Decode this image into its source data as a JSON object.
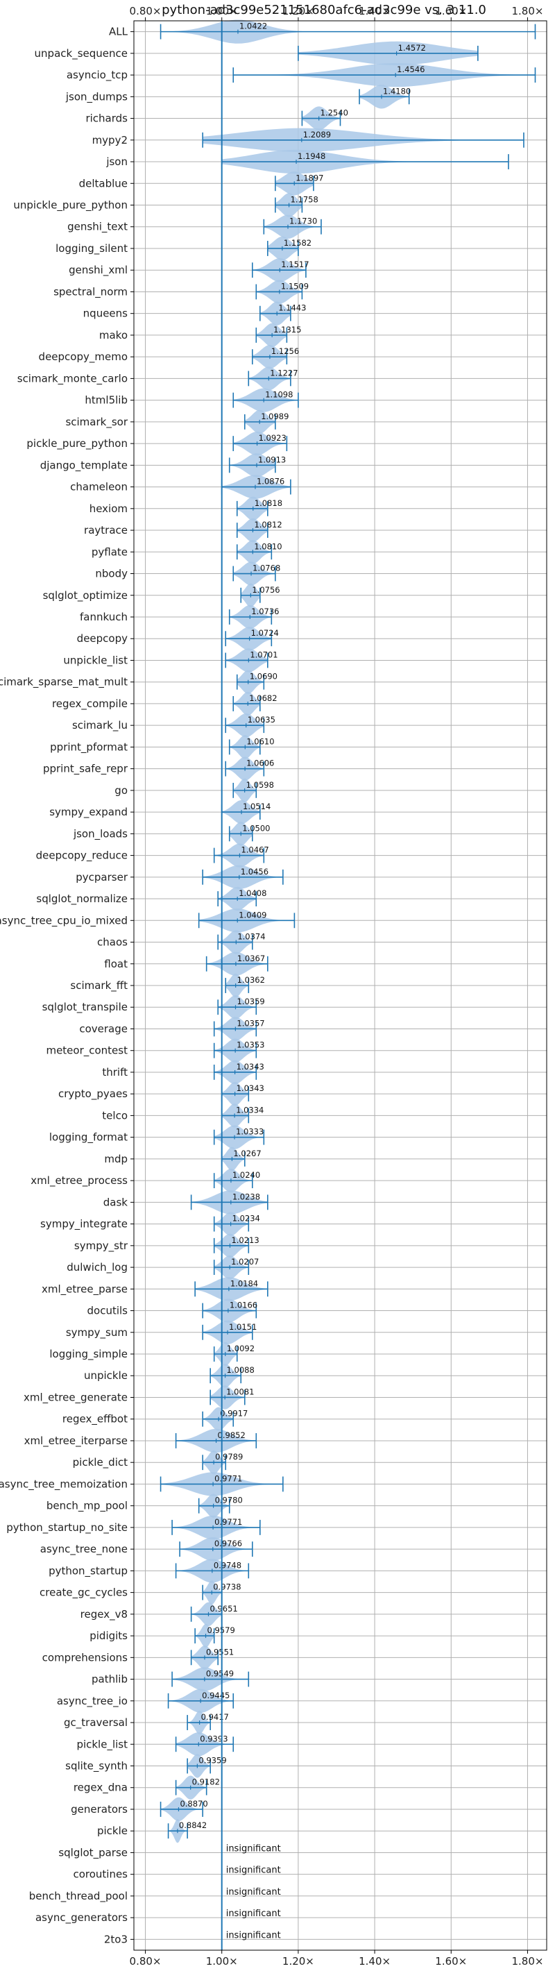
{
  "chart_data": {
    "type": "violin",
    "title": "python-ad3c99e521151680afc6-ad3c99e vs. 3.11.0",
    "xlim": [
      0.77,
      1.85
    ],
    "xticks": [
      "0.80×",
      "1.00×",
      "1.20×",
      "1.40×",
      "1.60×",
      "1.80×"
    ],
    "xtick_values": [
      0.8,
      1.0,
      1.2,
      1.4,
      1.6,
      1.8
    ],
    "reference_line": 1.0,
    "grid": true,
    "colors": {
      "violin": "#a9c8e8",
      "whisker": "#1f77b4",
      "refline": "#1f77b4",
      "grid": "#b0b0b0"
    },
    "insignificant_label": "insignificant",
    "benchmarks": [
      {
        "name": "ALL",
        "value": 1.0422,
        "label": "1.0422",
        "min": 0.84,
        "max": 1.82,
        "spread": 0.12
      },
      {
        "name": "unpack_sequence",
        "value": 1.4572,
        "label": "1.4572",
        "min": 1.2,
        "max": 1.67,
        "spread": 0.22
      },
      {
        "name": "asyncio_tcp",
        "value": 1.4546,
        "label": "1.4546",
        "min": 1.03,
        "max": 1.82,
        "spread": 0.22
      },
      {
        "name": "json_dumps",
        "value": 1.418,
        "label": "1.4180",
        "min": 1.36,
        "max": 1.49,
        "spread": 0.05
      },
      {
        "name": "richards",
        "value": 1.254,
        "label": "1.2540",
        "min": 1.21,
        "max": 1.31,
        "spread": 0.04
      },
      {
        "name": "mypy2",
        "value": 1.2089,
        "label": "1.2089",
        "min": 0.95,
        "max": 1.79,
        "spread": 0.3
      },
      {
        "name": "json",
        "value": 1.1948,
        "label": "1.1948",
        "min": 1.0,
        "max": 1.75,
        "spread": 0.2
      },
      {
        "name": "deltablue",
        "value": 1.1897,
        "label": "1.1897",
        "min": 1.14,
        "max": 1.24,
        "spread": 0.05
      },
      {
        "name": "unpickle_pure_python",
        "value": 1.1758,
        "label": "1.1758",
        "min": 1.14,
        "max": 1.21,
        "spread": 0.035
      },
      {
        "name": "genshi_text",
        "value": 1.173,
        "label": "1.1730",
        "min": 1.11,
        "max": 1.26,
        "spread": 0.05
      },
      {
        "name": "logging_silent",
        "value": 1.1582,
        "label": "1.1582",
        "min": 1.12,
        "max": 1.2,
        "spread": 0.04
      },
      {
        "name": "genshi_xml",
        "value": 1.1517,
        "label": "1.1517",
        "min": 1.08,
        "max": 1.22,
        "spread": 0.05
      },
      {
        "name": "spectral_norm",
        "value": 1.1509,
        "label": "1.1509",
        "min": 1.09,
        "max": 1.21,
        "spread": 0.045
      },
      {
        "name": "nqueens",
        "value": 1.1443,
        "label": "1.1443",
        "min": 1.1,
        "max": 1.18,
        "spread": 0.035
      },
      {
        "name": "mako",
        "value": 1.1315,
        "label": "1.1315",
        "min": 1.09,
        "max": 1.17,
        "spread": 0.035
      },
      {
        "name": "deepcopy_memo",
        "value": 1.1256,
        "label": "1.1256",
        "min": 1.08,
        "max": 1.17,
        "spread": 0.04
      },
      {
        "name": "scimark_monte_carlo",
        "value": 1.1227,
        "label": "1.1227",
        "min": 1.07,
        "max": 1.18,
        "spread": 0.04
      },
      {
        "name": "html5lib",
        "value": 1.1098,
        "label": "1.1098",
        "min": 1.03,
        "max": 1.2,
        "spread": 0.06
      },
      {
        "name": "scimark_sor",
        "value": 1.0989,
        "label": "1.0989",
        "min": 1.06,
        "max": 1.14,
        "spread": 0.035
      },
      {
        "name": "pickle_pure_python",
        "value": 1.0923,
        "label": "1.0923",
        "min": 1.03,
        "max": 1.17,
        "spread": 0.05
      },
      {
        "name": "django_template",
        "value": 1.0913,
        "label": "1.0913",
        "min": 1.02,
        "max": 1.14,
        "spread": 0.05
      },
      {
        "name": "chameleon",
        "value": 1.0876,
        "label": "1.0876",
        "min": 1.0,
        "max": 1.18,
        "spread": 0.07
      },
      {
        "name": "hexiom",
        "value": 1.0818,
        "label": "1.0818",
        "min": 1.04,
        "max": 1.12,
        "spread": 0.035
      },
      {
        "name": "raytrace",
        "value": 1.0812,
        "label": "1.0812",
        "min": 1.04,
        "max": 1.12,
        "spread": 0.035
      },
      {
        "name": "pyflate",
        "value": 1.081,
        "label": "1.0810",
        "min": 1.04,
        "max": 1.13,
        "spread": 0.035
      },
      {
        "name": "nbody",
        "value": 1.0768,
        "label": "1.0768",
        "min": 1.03,
        "max": 1.14,
        "spread": 0.04
      },
      {
        "name": "sqlglot_optimize",
        "value": 1.0756,
        "label": "1.0756",
        "min": 1.05,
        "max": 1.1,
        "spread": 0.025
      },
      {
        "name": "fannkuch",
        "value": 1.0736,
        "label": "1.0736",
        "min": 1.02,
        "max": 1.13,
        "spread": 0.04
      },
      {
        "name": "deepcopy",
        "value": 1.0724,
        "label": "1.0724",
        "min": 1.01,
        "max": 1.13,
        "spread": 0.045
      },
      {
        "name": "unpickle_list",
        "value": 1.0701,
        "label": "1.0701",
        "min": 1.01,
        "max": 1.12,
        "spread": 0.045
      },
      {
        "name": "scimark_sparse_mat_mult",
        "value": 1.069,
        "label": "1.0690",
        "min": 1.04,
        "max": 1.11,
        "spread": 0.03
      },
      {
        "name": "regex_compile",
        "value": 1.0682,
        "label": "1.0682",
        "min": 1.03,
        "max": 1.1,
        "spread": 0.03
      },
      {
        "name": "scimark_lu",
        "value": 1.0635,
        "label": "1.0635",
        "min": 1.01,
        "max": 1.11,
        "spread": 0.04
      },
      {
        "name": "pprint_pformat",
        "value": 1.061,
        "label": "1.0610",
        "min": 1.02,
        "max": 1.1,
        "spread": 0.03
      },
      {
        "name": "pprint_safe_repr",
        "value": 1.0606,
        "label": "1.0606",
        "min": 1.01,
        "max": 1.11,
        "spread": 0.035
      },
      {
        "name": "go",
        "value": 1.0598,
        "label": "1.0598",
        "min": 1.03,
        "max": 1.09,
        "spread": 0.025
      },
      {
        "name": "sympy_expand",
        "value": 1.0514,
        "label": "1.0514",
        "min": 1.0,
        "max": 1.1,
        "spread": 0.04
      },
      {
        "name": "json_loads",
        "value": 1.05,
        "label": "1.0500",
        "min": 1.02,
        "max": 1.08,
        "spread": 0.03
      },
      {
        "name": "deepcopy_reduce",
        "value": 1.0467,
        "label": "1.0467",
        "min": 0.98,
        "max": 1.11,
        "spread": 0.045
      },
      {
        "name": "pycparser",
        "value": 1.0456,
        "label": "1.0456",
        "min": 0.95,
        "max": 1.16,
        "spread": 0.07
      },
      {
        "name": "sqlglot_normalize",
        "value": 1.0408,
        "label": "1.0408",
        "min": 0.99,
        "max": 1.09,
        "spread": 0.04
      },
      {
        "name": "async_tree_cpu_io_mixed",
        "value": 1.0409,
        "label": "1.0409",
        "min": 0.94,
        "max": 1.19,
        "spread": 0.08
      },
      {
        "name": "chaos",
        "value": 1.0374,
        "label": "1.0374",
        "min": 0.99,
        "max": 1.08,
        "spread": 0.035
      },
      {
        "name": "float",
        "value": 1.0367,
        "label": "1.0367",
        "min": 0.96,
        "max": 1.12,
        "spread": 0.055
      },
      {
        "name": "scimark_fft",
        "value": 1.0362,
        "label": "1.0362",
        "min": 1.01,
        "max": 1.07,
        "spread": 0.025
      },
      {
        "name": "sqlglot_transpile",
        "value": 1.0359,
        "label": "1.0359",
        "min": 0.99,
        "max": 1.09,
        "spread": 0.035
      },
      {
        "name": "coverage",
        "value": 1.0357,
        "label": "1.0357",
        "min": 0.98,
        "max": 1.09,
        "spread": 0.04
      },
      {
        "name": "meteor_contest",
        "value": 1.0353,
        "label": "1.0353",
        "min": 0.98,
        "max": 1.09,
        "spread": 0.04
      },
      {
        "name": "thrift",
        "value": 1.0343,
        "label": "1.0343",
        "min": 0.98,
        "max": 1.09,
        "spread": 0.04
      },
      {
        "name": "crypto_pyaes",
        "value": 1.0343,
        "label": "1.0343",
        "min": 1.0,
        "max": 1.07,
        "spread": 0.03
      },
      {
        "name": "telco",
        "value": 1.0334,
        "label": "1.0334",
        "min": 1.0,
        "max": 1.07,
        "spread": 0.03
      },
      {
        "name": "logging_format",
        "value": 1.0333,
        "label": "1.0333",
        "min": 0.98,
        "max": 1.11,
        "spread": 0.045
      },
      {
        "name": "mdp",
        "value": 1.0267,
        "label": "1.0267",
        "min": 1.0,
        "max": 1.06,
        "spread": 0.025
      },
      {
        "name": "xml_etree_process",
        "value": 1.024,
        "label": "1.0240",
        "min": 0.98,
        "max": 1.08,
        "spread": 0.035
      },
      {
        "name": "dask",
        "value": 1.0238,
        "label": "1.0238",
        "min": 0.92,
        "max": 1.12,
        "spread": 0.075
      },
      {
        "name": "sympy_integrate",
        "value": 1.0234,
        "label": "1.0234",
        "min": 0.98,
        "max": 1.07,
        "spread": 0.035
      },
      {
        "name": "sympy_str",
        "value": 1.0213,
        "label": "1.0213",
        "min": 0.98,
        "max": 1.07,
        "spread": 0.035
      },
      {
        "name": "dulwich_log",
        "value": 1.0207,
        "label": "1.0207",
        "min": 0.98,
        "max": 1.07,
        "spread": 0.035
      },
      {
        "name": "xml_etree_parse",
        "value": 1.0184,
        "label": "1.0184",
        "min": 0.93,
        "max": 1.12,
        "spread": 0.07
      },
      {
        "name": "docutils",
        "value": 1.0166,
        "label": "1.0166",
        "min": 0.95,
        "max": 1.09,
        "spread": 0.05
      },
      {
        "name": "sympy_sum",
        "value": 1.0151,
        "label": "1.0151",
        "min": 0.95,
        "max": 1.08,
        "spread": 0.05
      },
      {
        "name": "logging_simple",
        "value": 1.0092,
        "label": "1.0092",
        "min": 0.98,
        "max": 1.04,
        "spread": 0.025
      },
      {
        "name": "unpickle",
        "value": 1.0088,
        "label": "1.0088",
        "min": 0.97,
        "max": 1.05,
        "spread": 0.03
      },
      {
        "name": "xml_etree_generate",
        "value": 1.0081,
        "label": "1.0081",
        "min": 0.97,
        "max": 1.06,
        "spread": 0.035
      },
      {
        "name": "regex_effbot",
        "value": 0.9917,
        "label": "0.9917",
        "min": 0.95,
        "max": 1.03,
        "spread": 0.03
      },
      {
        "name": "xml_etree_iterparse",
        "value": 0.9852,
        "label": "0.9852",
        "min": 0.88,
        "max": 1.09,
        "spread": 0.07
      },
      {
        "name": "pickle_dict",
        "value": 0.9789,
        "label": "0.9789",
        "min": 0.95,
        "max": 1.01,
        "spread": 0.025
      },
      {
        "name": "async_tree_memoization",
        "value": 0.9771,
        "label": "0.9771",
        "min": 0.84,
        "max": 1.16,
        "spread": 0.1
      },
      {
        "name": "bench_mp_pool",
        "value": 0.978,
        "label": "0.9780",
        "min": 0.94,
        "max": 1.02,
        "spread": 0.03
      },
      {
        "name": "python_startup_no_site",
        "value": 0.9771,
        "label": "0.9771",
        "min": 0.87,
        "max": 1.1,
        "spread": 0.07
      },
      {
        "name": "async_tree_none",
        "value": 0.9766,
        "label": "0.9766",
        "min": 0.89,
        "max": 1.08,
        "spread": 0.06
      },
      {
        "name": "python_startup",
        "value": 0.9748,
        "label": "0.9748",
        "min": 0.88,
        "max": 1.07,
        "spread": 0.06
      },
      {
        "name": "create_gc_cycles",
        "value": 0.9738,
        "label": "0.9738",
        "min": 0.95,
        "max": 1.0,
        "spread": 0.02
      },
      {
        "name": "regex_v8",
        "value": 0.9651,
        "label": "0.9651",
        "min": 0.92,
        "max": 1.0,
        "spread": 0.03
      },
      {
        "name": "pidigits",
        "value": 0.9579,
        "label": "0.9579",
        "min": 0.93,
        "max": 0.98,
        "spread": 0.02
      },
      {
        "name": "comprehensions",
        "value": 0.9551,
        "label": "0.9551",
        "min": 0.92,
        "max": 0.99,
        "spread": 0.03
      },
      {
        "name": "pathlib",
        "value": 0.9549,
        "label": "0.9549",
        "min": 0.87,
        "max": 1.07,
        "spread": 0.06
      },
      {
        "name": "async_tree_io",
        "value": 0.9445,
        "label": "0.9445",
        "min": 0.86,
        "max": 1.03,
        "spread": 0.055
      },
      {
        "name": "gc_traversal",
        "value": 0.9417,
        "label": "0.9417",
        "min": 0.91,
        "max": 0.97,
        "spread": 0.02
      },
      {
        "name": "pickle_list",
        "value": 0.9393,
        "label": "0.9393",
        "min": 0.88,
        "max": 1.03,
        "spread": 0.05
      },
      {
        "name": "sqlite_synth",
        "value": 0.9359,
        "label": "0.9359",
        "min": 0.91,
        "max": 0.97,
        "spread": 0.025
      },
      {
        "name": "regex_dna",
        "value": 0.9182,
        "label": "0.9182",
        "min": 0.88,
        "max": 0.96,
        "spread": 0.03
      },
      {
        "name": "generators",
        "value": 0.887,
        "label": "0.8870",
        "min": 0.84,
        "max": 0.95,
        "spread": 0.035
      },
      {
        "name": "pickle",
        "value": 0.8842,
        "label": "0.8842",
        "min": 0.86,
        "max": 0.91,
        "spread": 0.015
      },
      {
        "name": "sqlglot_parse",
        "insignificant": true
      },
      {
        "name": "coroutines",
        "insignificant": true
      },
      {
        "name": "bench_thread_pool",
        "insignificant": true
      },
      {
        "name": "async_generators",
        "insignificant": true
      },
      {
        "name": "2to3",
        "insignificant": true
      }
    ]
  }
}
